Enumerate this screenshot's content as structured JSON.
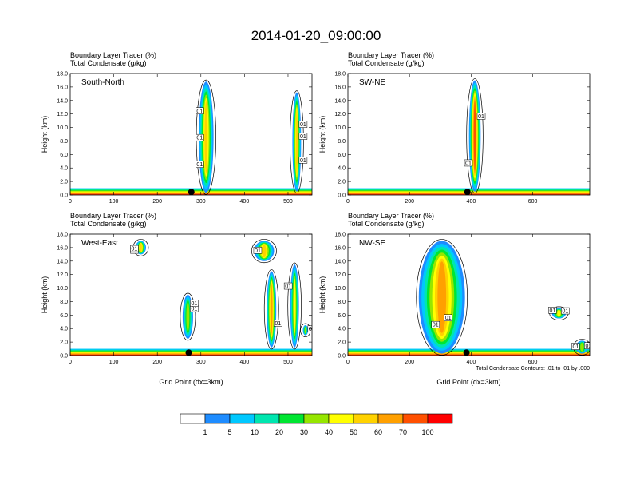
{
  "figure": {
    "title": "2014-01-20_09:00:00",
    "contour_note": "Total Condensate Contours: .01 to .01 by .000"
  },
  "chart_data": [
    {
      "type": "heatmap",
      "panel_label": "South-North",
      "header_line1": "Boundary Layer Tracer    (%)",
      "header_line2": "Total Condensate    (g/kg)",
      "ylabel": "Height (km)",
      "xlabel": "",
      "xlim": [
        0,
        555
      ],
      "ylim": [
        0,
        18
      ],
      "xticks": [
        "0",
        "100",
        "200",
        "300",
        "400",
        "500"
      ],
      "yticks": [
        "0.0",
        "2.0",
        "4.0",
        "6.0",
        "8.0",
        "10.0",
        "12.0",
        "14.0",
        "16.0",
        "18.0"
      ],
      "surface_layer": {
        "top_km": 1.0
      },
      "plumes": [
        {
          "x_center": 312,
          "x_width": 34,
          "z_bottom": 0.3,
          "z_top": 16.8,
          "peak": 50
        },
        {
          "x_center": 520,
          "x_width": 20,
          "z_bottom": 0.5,
          "z_top": 15.2,
          "peak": 50
        }
      ],
      "station_x": 278,
      "contour_labels": [
        "01",
        "01",
        "01",
        "01",
        "01",
        "01"
      ]
    },
    {
      "type": "heatmap",
      "panel_label": "SW-NE",
      "header_line1": "Boundary Layer Tracer    (%)",
      "header_line2": "Total Condensate    (g/kg)",
      "ylabel": "Height (km)",
      "xlabel": "",
      "xlim": [
        0,
        785
      ],
      "ylim": [
        0,
        18
      ],
      "xticks": [
        "0",
        "200",
        "400",
        "600"
      ],
      "yticks": [
        "0.0",
        "2.0",
        "4.0",
        "6.0",
        "8.0",
        "10.0",
        "12.0",
        "14.0",
        "16.0",
        "18.0"
      ],
      "surface_layer": {
        "top_km": 1.0
      },
      "plumes": [
        {
          "x_center": 412,
          "x_width": 38,
          "z_bottom": 0.5,
          "z_top": 17.0,
          "peak": 70
        }
      ],
      "station_x": 388,
      "contour_labels": [
        "01",
        "01"
      ]
    },
    {
      "type": "heatmap",
      "panel_label": "West-East",
      "header_line1": "Boundary Layer Tracer    (%)",
      "header_line2": "Total Condensate    (g/kg)",
      "ylabel": "Height (km)",
      "xlabel": "Grid Point (dx=3km)",
      "xlim": [
        0,
        555
      ],
      "ylim": [
        0,
        18
      ],
      "xticks": [
        "0",
        "100",
        "200",
        "300",
        "400",
        "500"
      ],
      "yticks": [
        "0.0",
        "2.0",
        "4.0",
        "6.0",
        "8.0",
        "10.0",
        "12.0",
        "14.0",
        "16.0",
        "18.0"
      ],
      "surface_layer": {
        "top_km": 1.0
      },
      "plumes": [
        {
          "x_center": 162,
          "x_width": 24,
          "z_bottom": 15.0,
          "z_top": 17.0,
          "peak": 50
        },
        {
          "x_center": 270,
          "x_width": 24,
          "z_bottom": 2.5,
          "z_top": 9.0,
          "peak": 30
        },
        {
          "x_center": 445,
          "x_width": 46,
          "z_bottom": 14.0,
          "z_top": 17.0,
          "peak": 50
        },
        {
          "x_center": 462,
          "x_width": 22,
          "z_bottom": 1.2,
          "z_top": 12.5,
          "peak": 60
        },
        {
          "x_center": 515,
          "x_width": 20,
          "z_bottom": 1.2,
          "z_top": 13.5,
          "peak": 40
        },
        {
          "x_center": 540,
          "x_width": 12,
          "z_bottom": 3.0,
          "z_top": 4.5,
          "peak": 30
        }
      ],
      "station_x": 272,
      "contour_labels": [
        "01",
        "01",
        "01",
        "01",
        "01",
        "01",
        "01",
        "01"
      ]
    },
    {
      "type": "heatmap",
      "panel_label": "NW-SE",
      "header_line1": "Boundary Layer Tracer    (%)",
      "header_line2": "Total Condensate    (g/kg)",
      "ylabel": "Height (km)",
      "xlabel": "Grid Point (dx=3km)",
      "xlim": [
        0,
        785
      ],
      "ylim": [
        0,
        18
      ],
      "xticks": [
        "0",
        "200",
        "400",
        "600"
      ],
      "yticks": [
        "0.0",
        "2.0",
        "4.0",
        "6.0",
        "8.0",
        "10.0",
        "12.0",
        "14.0",
        "16.0",
        "18.0"
      ],
      "surface_layer": {
        "top_km": 1.0
      },
      "plumes": [
        {
          "x_center": 305,
          "x_width": 150,
          "z_bottom": 0.3,
          "z_top": 17.0,
          "peak": 60
        },
        {
          "x_center": 685,
          "x_width": 45,
          "z_bottom": 5.5,
          "z_top": 7.0,
          "peak": 40
        },
        {
          "x_center": 760,
          "x_width": 40,
          "z_bottom": 0.3,
          "z_top": 2.2,
          "peak": 30
        }
      ],
      "station_x": 385,
      "contour_labels": [
        "01",
        "01",
        "01",
        "01",
        "01",
        "01"
      ]
    }
  ],
  "colorbar": {
    "labels": [
      "1",
      "5",
      "10",
      "20",
      "30",
      "40",
      "50",
      "60",
      "70",
      "100"
    ],
    "colors": [
      "#ffffff",
      "#1e8cff",
      "#00c8ff",
      "#00e6af",
      "#00e632",
      "#96e600",
      "#ffff00",
      "#ffd200",
      "#ffa000",
      "#ff5000",
      "#ff0000"
    ]
  }
}
